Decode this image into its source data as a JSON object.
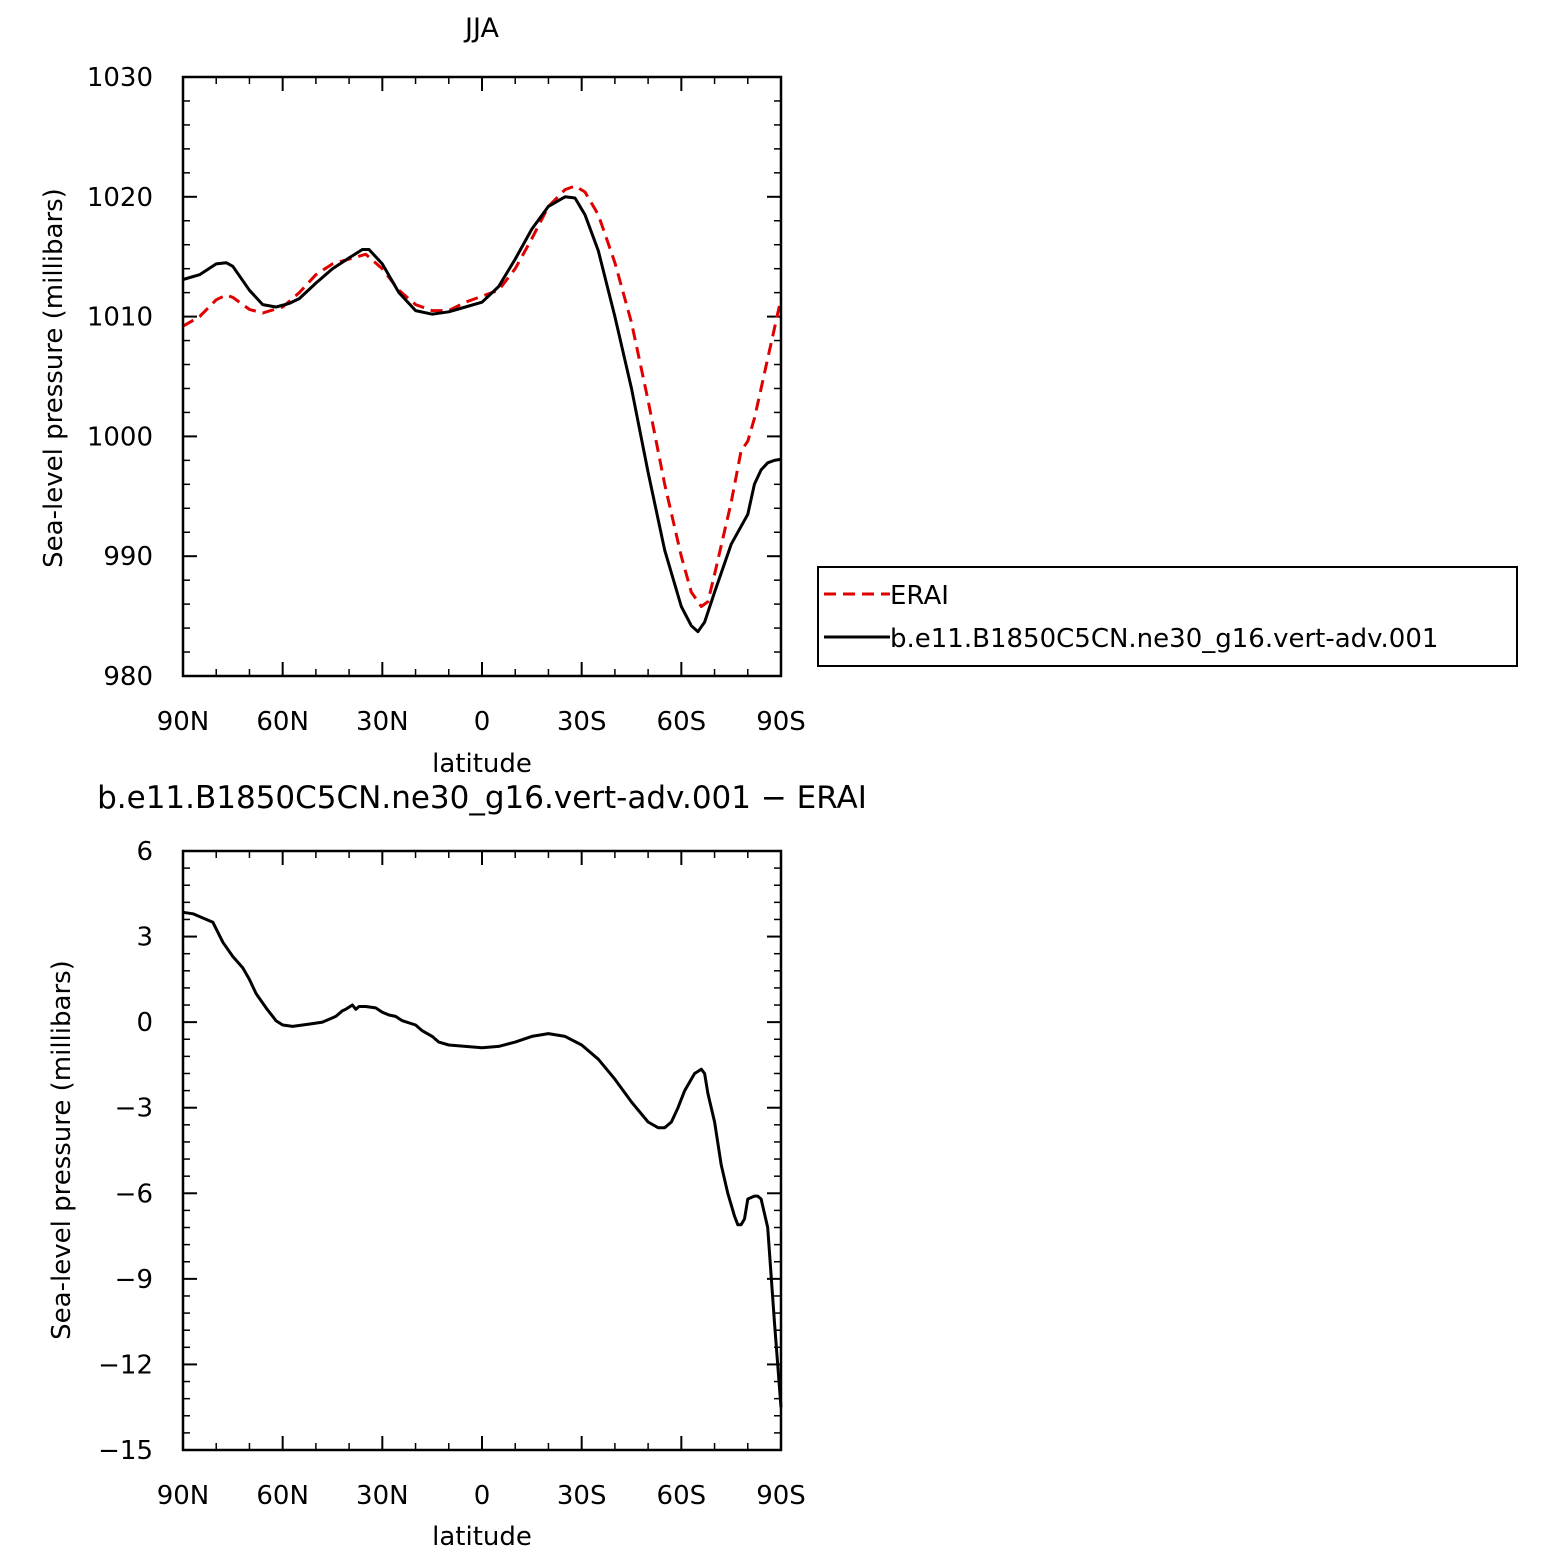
{
  "chart_data": [
    {
      "type": "line",
      "title": "JJA",
      "xlabel": "latitude",
      "ylabel": "Sea-level pressure (millibars)",
      "x_unit": "degrees latitude (positive = N, negative = S)",
      "xlim": [
        90,
        -90
      ],
      "ylim": [
        980,
        1030
      ],
      "x_ticks": [
        90,
        60,
        30,
        0,
        -30,
        -60,
        -90
      ],
      "x_tick_labels": [
        "90N",
        "60N",
        "30N",
        "0",
        "30S",
        "60S",
        "90S"
      ],
      "y_ticks": [
        980,
        990,
        1000,
        1010,
        1020,
        1030
      ],
      "y_tick_labels": [
        "980",
        "990",
        "1000",
        "1010",
        "1020",
        "1030"
      ],
      "grid": false,
      "legend_position": "right",
      "series": [
        {
          "name": "ERAI",
          "color": "#e00000",
          "dash": true,
          "x": [
            90,
            85,
            80,
            77,
            75,
            70,
            66,
            60,
            55,
            50,
            45,
            40,
            35,
            30,
            25,
            20,
            15,
            10,
            5,
            0,
            -5,
            -10,
            -15,
            -20,
            -25,
            -28,
            -31,
            -35,
            -40,
            -45,
            -50,
            -55,
            -60,
            -63,
            -66,
            -68,
            -70,
            -75,
            -78,
            -80,
            -82,
            -84,
            -86,
            -88,
            -90
          ],
          "y": [
            1009.2,
            1010.0,
            1011.4,
            1011.8,
            1011.6,
            1010.6,
            1010.3,
            1010.8,
            1012.0,
            1013.5,
            1014.4,
            1014.8,
            1015.2,
            1014.0,
            1012.2,
            1011.0,
            1010.5,
            1010.5,
            1011.2,
            1011.7,
            1012.2,
            1014.0,
            1016.5,
            1019.2,
            1020.6,
            1020.9,
            1020.4,
            1018.5,
            1014.5,
            1009.5,
            1003.0,
            996.0,
            990.0,
            987.0,
            985.8,
            986.2,
            988.5,
            994.5,
            998.8,
            999.6,
            1001.5,
            1004.0,
            1006.5,
            1009.0,
            1011.5
          ]
        },
        {
          "name": "b.e11.B1850C5CN.ne30_g16.vert-adv.001",
          "color": "#000000",
          "dash": false,
          "x": [
            90,
            85,
            80,
            77,
            75,
            70,
            66,
            62,
            58,
            55,
            50,
            45,
            40,
            36,
            34,
            30,
            25,
            20,
            15,
            10,
            5,
            0,
            -5,
            -10,
            -15,
            -20,
            -25,
            -28,
            -31,
            -35,
            -40,
            -45,
            -50,
            -55,
            -60,
            -63,
            -65,
            -67,
            -70,
            -75,
            -80,
            -82,
            -84,
            -86,
            -88,
            -90
          ],
          "y": [
            1013.1,
            1013.5,
            1014.4,
            1014.5,
            1014.2,
            1012.2,
            1011.0,
            1010.8,
            1011.1,
            1011.5,
            1012.8,
            1014.0,
            1014.9,
            1015.6,
            1015.6,
            1014.4,
            1012.0,
            1010.5,
            1010.2,
            1010.4,
            1010.8,
            1011.2,
            1012.5,
            1014.8,
            1017.3,
            1019.2,
            1020.0,
            1019.9,
            1018.5,
            1015.5,
            1010.0,
            1004.0,
            997.0,
            990.5,
            985.8,
            984.2,
            983.7,
            984.5,
            987.0,
            991.0,
            993.5,
            996.0,
            997.2,
            997.8,
            998.0,
            998.1
          ]
        }
      ]
    },
    {
      "type": "line",
      "title": "b.e11.B1850C5CN.ne30_g16.vert-adv.001 − ERAI",
      "xlabel": "latitude",
      "ylabel": "Sea-level pressure (millibars)",
      "x_unit": "degrees latitude (positive = N, negative = S)",
      "xlim": [
        90,
        -90
      ],
      "ylim": [
        -15,
        6
      ],
      "x_ticks": [
        90,
        60,
        30,
        0,
        -30,
        -60,
        -90
      ],
      "x_tick_labels": [
        "90N",
        "60N",
        "30N",
        "0",
        "30S",
        "60S",
        "90S"
      ],
      "y_ticks": [
        -15,
        -12,
        -9,
        -6,
        -3,
        0,
        3,
        6
      ],
      "y_tick_labels": [
        "−15",
        "−12",
        "−9",
        "−6",
        "−3",
        "0",
        "3",
        "6"
      ],
      "grid": false,
      "series": [
        {
          "color": "#000000",
          "dash": false,
          "x": [
            90,
            87,
            84,
            81,
            78,
            75,
            72,
            70,
            68,
            65,
            62,
            60,
            57,
            54,
            51,
            48,
            46,
            44,
            42,
            41,
            39,
            38,
            37,
            35,
            32,
            30,
            28,
            26,
            24,
            20,
            18,
            15,
            13,
            10,
            5,
            0,
            -5,
            -10,
            -15,
            -20,
            -25,
            -30,
            -35,
            -40,
            -45,
            -50,
            -53,
            -55,
            -57,
            -59,
            -61,
            -64,
            -66,
            -67,
            -68,
            -70,
            -72,
            -74,
            -76,
            -77,
            -78,
            -79,
            -80,
            -82,
            -83,
            -84,
            -86,
            -88,
            -90
          ],
          "y": [
            3.85,
            3.8,
            3.65,
            3.5,
            2.8,
            2.3,
            1.9,
            1.5,
            1.0,
            0.5,
            0.05,
            -0.1,
            -0.15,
            -0.1,
            -0.05,
            0.0,
            0.1,
            0.2,
            0.4,
            0.45,
            0.6,
            0.45,
            0.55,
            0.55,
            0.5,
            0.35,
            0.25,
            0.2,
            0.05,
            -0.1,
            -0.3,
            -0.5,
            -0.7,
            -0.8,
            -0.85,
            -0.9,
            -0.85,
            -0.7,
            -0.5,
            -0.4,
            -0.5,
            -0.8,
            -1.3,
            -2.0,
            -2.8,
            -3.5,
            -3.7,
            -3.7,
            -3.5,
            -3.0,
            -2.4,
            -1.8,
            -1.65,
            -1.8,
            -2.5,
            -3.5,
            -5.0,
            -6.0,
            -6.8,
            -7.1,
            -7.1,
            -6.9,
            -6.2,
            -6.1,
            -6.1,
            -6.2,
            -7.2,
            -10.5,
            -13.5
          ]
        }
      ]
    }
  ],
  "legend": {
    "entries": [
      "ERAI",
      "b.e11.B1850C5CN.ne30_g16.vert-adv.001"
    ]
  }
}
